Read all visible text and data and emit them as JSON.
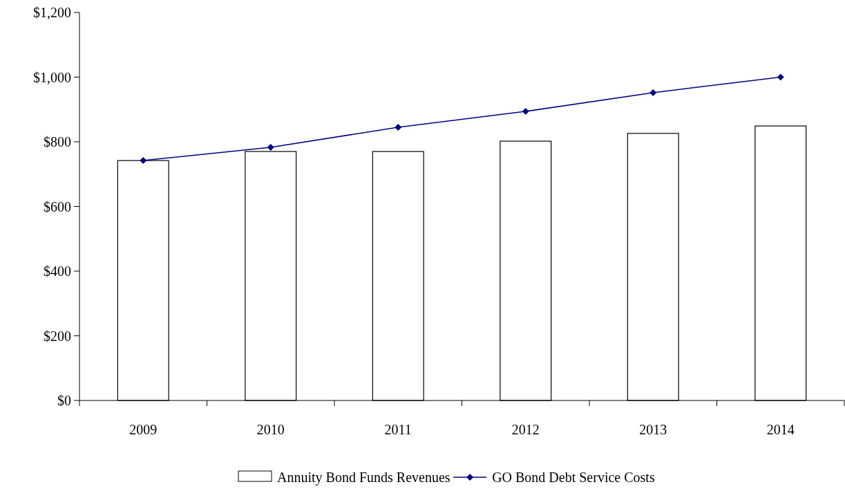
{
  "chart_data": {
    "type": "bar",
    "categories": [
      "2009",
      "2010",
      "2011",
      "2012",
      "2013",
      "2014"
    ],
    "series": [
      {
        "name": "Annuity Bond Funds Revenues",
        "color": "#ffffff",
        "values": [
          742,
          770,
          770,
          802,
          826,
          849
        ]
      },
      {
        "name": "GO Bond Debt Service Costs",
        "type": "line",
        "color": "#000080",
        "marker": "diamond",
        "values": [
          742,
          783,
          845,
          894,
          952,
          1000
        ]
      }
    ],
    "ylim": [
      0,
      1200
    ],
    "yticks": [
      {
        "value": 0,
        "label": "$0"
      },
      {
        "value": 200,
        "label": "$200"
      },
      {
        "value": 400,
        "label": "$400"
      },
      {
        "value": 600,
        "label": "$600"
      },
      {
        "value": 800,
        "label": "$800"
      },
      {
        "value": 1000,
        "label": "$1,000"
      },
      {
        "value": 1200,
        "label": "$1,200"
      }
    ],
    "grid": false,
    "legend": "bottom"
  }
}
